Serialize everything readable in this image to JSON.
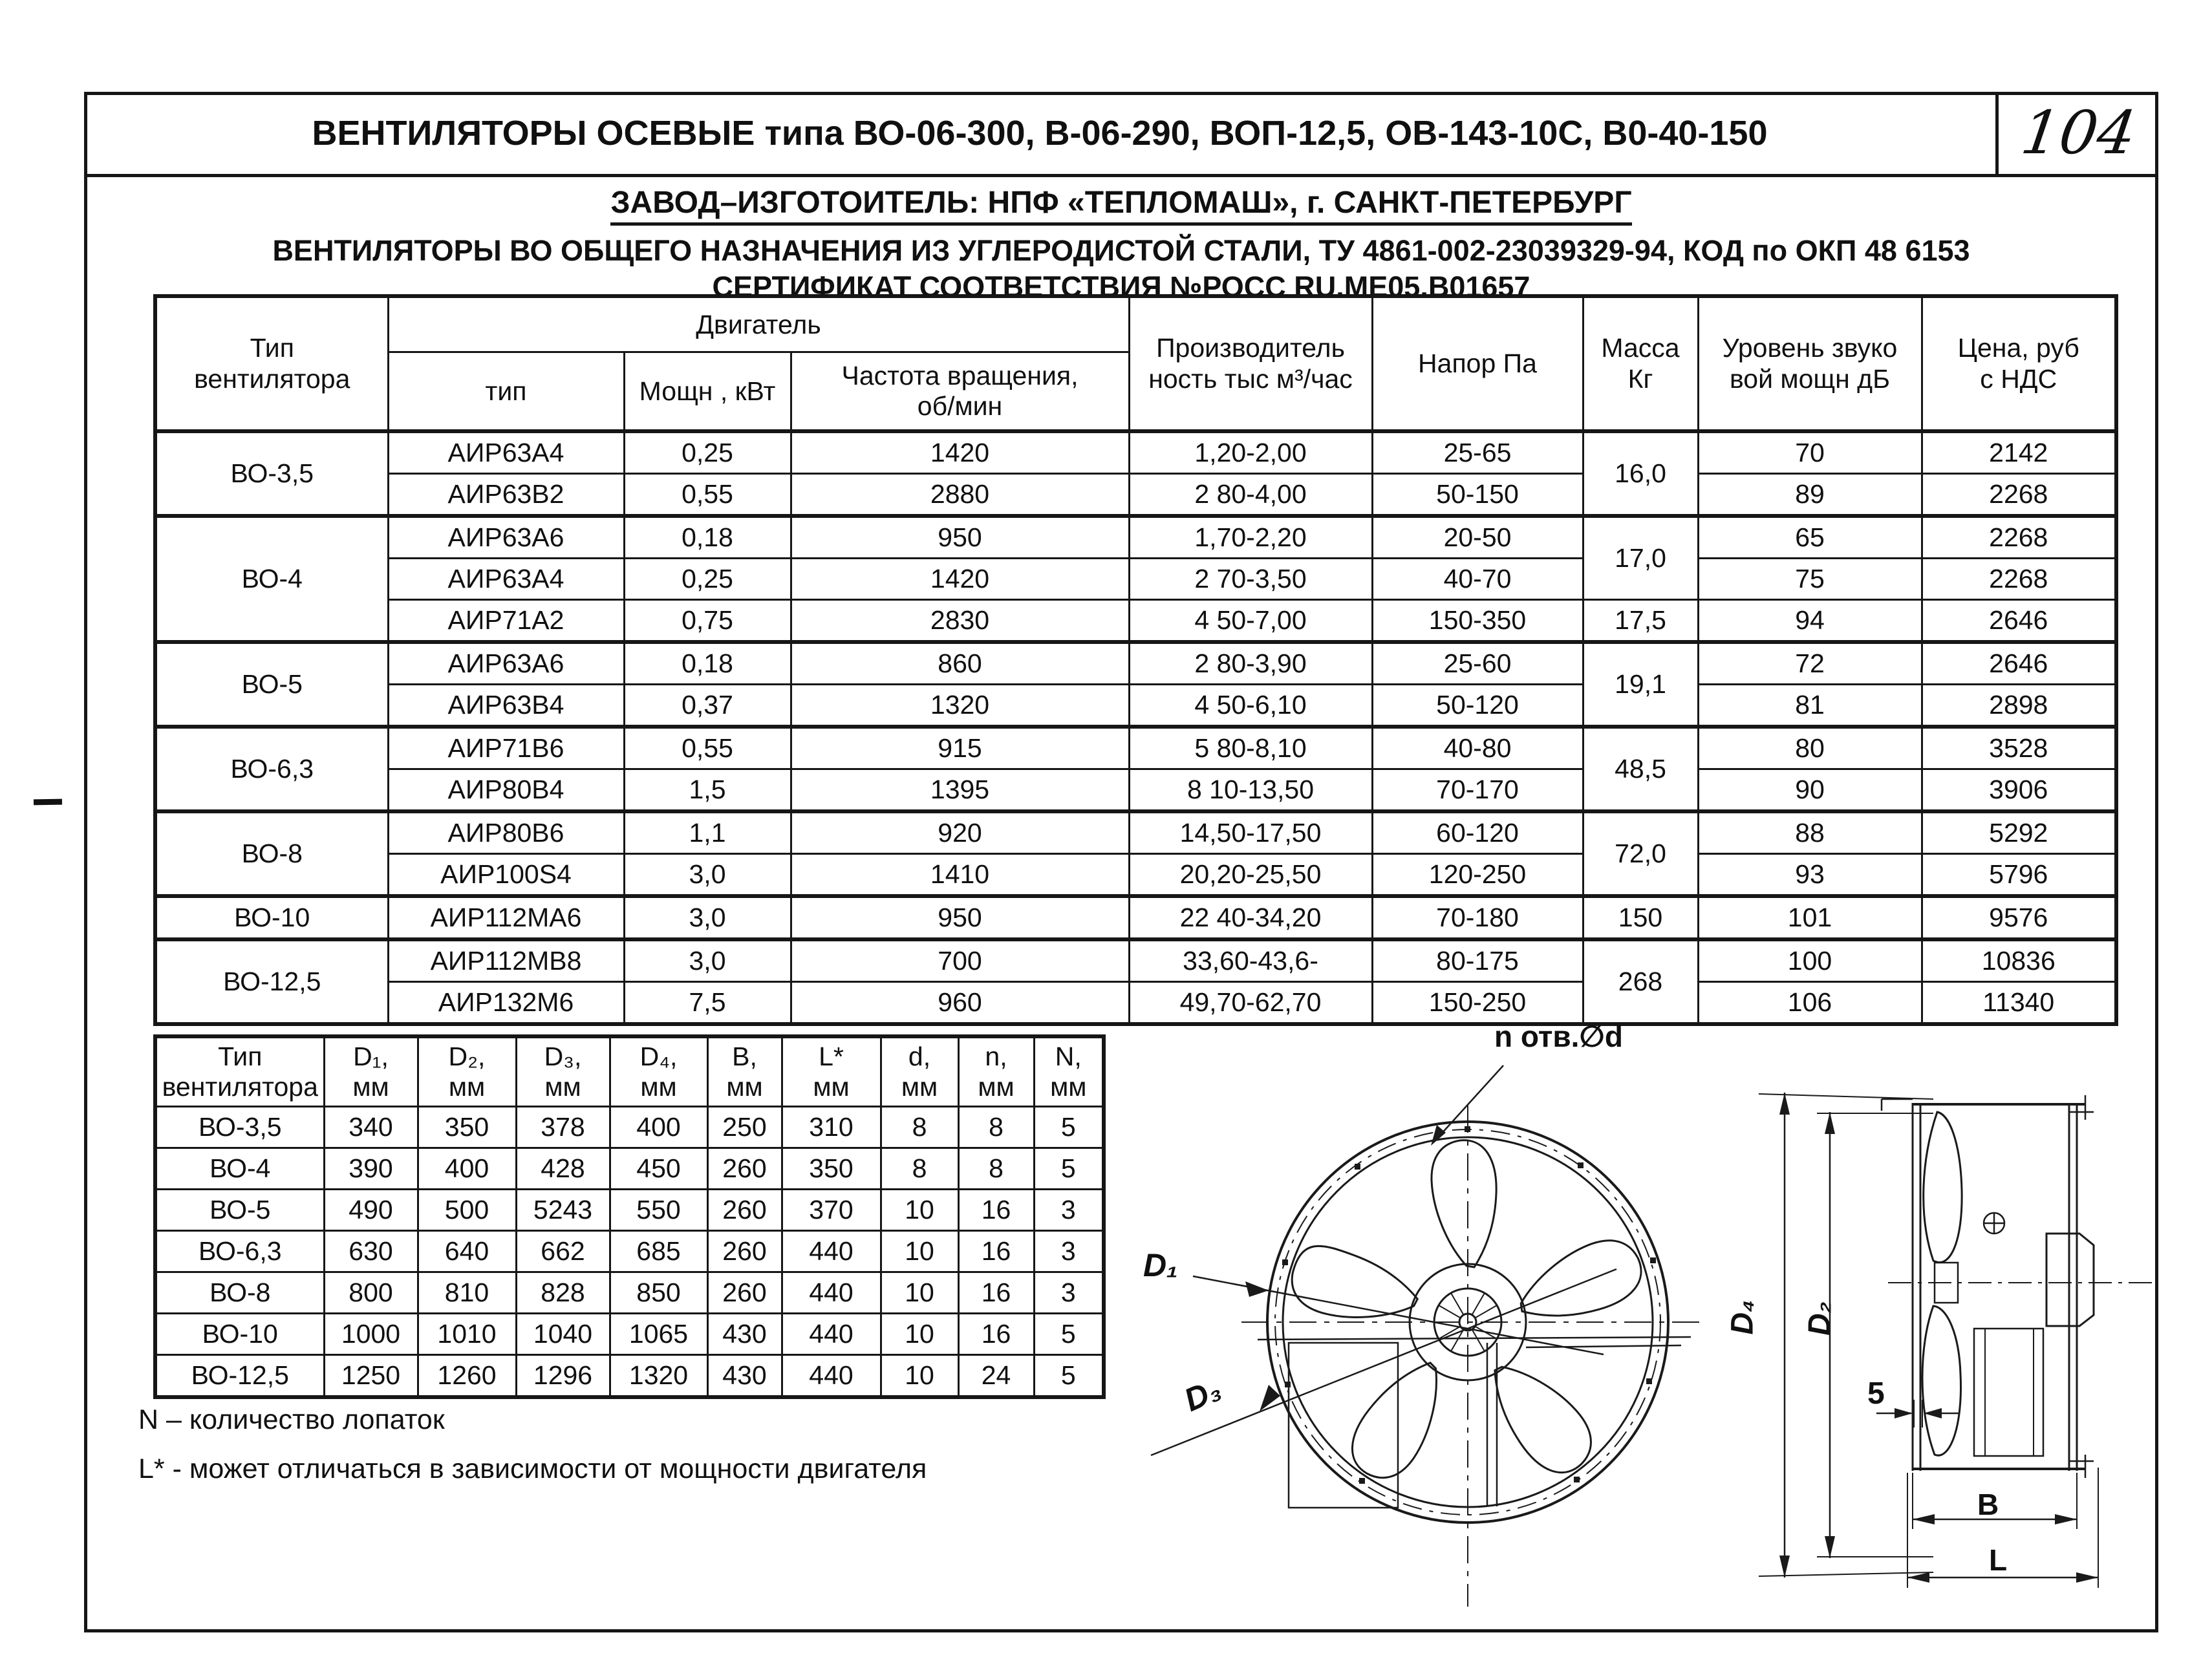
{
  "page": {
    "number": "104",
    "title": "ВЕНТИЛЯТОРЫ ОСЕВЫЕ типа ВО-06-300, В-06-290, ВОП-12,5, ОВ-143-10С, В0-40-150",
    "manufacturer": "ЗАВОД–ИЗГОТОИТЕЛЬ: НПФ «ТЕПЛОМАШ», г. САНКТ-ПЕТЕРБУРГ",
    "description_line1": "ВЕНТИЛЯТОРЫ ВО ОБЩЕГО НАЗНАЧЕНИЯ ИЗ УГЛЕРОДИСТОЙ СТАЛИ, ТУ 4861-002-23039329-94, КОД по ОКП 48 6153",
    "description_line2": "СЕРТИФИКАТ СООТВЕТСТВИЯ №РОСС RU.ME05.B01657"
  },
  "spec_table": {
    "header": {
      "type_l1": "Тип",
      "type_l2": "вентилятора",
      "motor_group": "Двигатель",
      "motor_type": "тип",
      "power": "Мощн , кВт",
      "rpm_l1": "Частота вращения,",
      "rpm_l2": "об/мин",
      "capacity_l1": "Производитель",
      "capacity_l2": "ность тыс м³/час",
      "pressure": "Напор Па",
      "mass_l1": "Масса",
      "mass_l2": "Кг",
      "noise_l1": "Уровень звуко",
      "noise_l2": "вой мощн дБ",
      "price_l1": "Цена, руб",
      "price_l2": "с НДС"
    },
    "groups": [
      {
        "type": "ВО-3,5",
        "masses": [
          {
            "value": "16,0",
            "span": 2
          }
        ],
        "rows": [
          {
            "motor": "АИР63А4",
            "power": "0,25",
            "rpm": "1420",
            "cap": "1,20-2,00",
            "pres": "25-65",
            "noise": "70",
            "price": "2142"
          },
          {
            "motor": "АИР63В2",
            "power": "0,55",
            "rpm": "2880",
            "cap": "2 80-4,00",
            "pres": "50-150",
            "noise": "89",
            "price": "2268"
          }
        ]
      },
      {
        "type": "ВО-4",
        "masses": [
          {
            "value": "17,0",
            "span": 2
          },
          {
            "value": "17,5",
            "span": 1
          }
        ],
        "rows": [
          {
            "motor": "АИР63А6",
            "power": "0,18",
            "rpm": "950",
            "cap": "1,70-2,20",
            "pres": "20-50",
            "noise": "65",
            "price": "2268"
          },
          {
            "motor": "АИР63А4",
            "power": "0,25",
            "rpm": "1420",
            "cap": "2 70-3,50",
            "pres": "40-70",
            "noise": "75",
            "price": "2268"
          },
          {
            "motor": "АИР71А2",
            "power": "0,75",
            "rpm": "2830",
            "cap": "4 50-7,00",
            "pres": "150-350",
            "noise": "94",
            "price": "2646"
          }
        ]
      },
      {
        "type": "ВО-5",
        "masses": [
          {
            "value": "19,1",
            "span": 2
          }
        ],
        "rows": [
          {
            "motor": "АИР63А6",
            "power": "0,18",
            "rpm": "860",
            "cap": "2 80-3,90",
            "pres": "25-60",
            "noise": "72",
            "price": "2646"
          },
          {
            "motor": "АИР63В4",
            "power": "0,37",
            "rpm": "1320",
            "cap": "4 50-6,10",
            "pres": "50-120",
            "noise": "81",
            "price": "2898"
          }
        ]
      },
      {
        "type": "ВО-6,3",
        "masses": [
          {
            "value": "48,5",
            "span": 2
          }
        ],
        "rows": [
          {
            "motor": "АИР71В6",
            "power": "0,55",
            "rpm": "915",
            "cap": "5 80-8,10",
            "pres": "40-80",
            "noise": "80",
            "price": "3528"
          },
          {
            "motor": "АИР80В4",
            "power": "1,5",
            "rpm": "1395",
            "cap": "8 10-13,50",
            "pres": "70-170",
            "noise": "90",
            "price": "3906"
          }
        ]
      },
      {
        "type": "ВО-8",
        "masses": [
          {
            "value": "72,0",
            "span": 2
          }
        ],
        "rows": [
          {
            "motor": "АИР80В6",
            "power": "1,1",
            "rpm": "920",
            "cap": "14,50-17,50",
            "pres": "60-120",
            "noise": "88",
            "price": "5292"
          },
          {
            "motor": "АИР100S4",
            "power": "3,0",
            "rpm": "1410",
            "cap": "20,20-25,50",
            "pres": "120-250",
            "noise": "93",
            "price": "5796"
          }
        ]
      },
      {
        "type": "ВО-10",
        "masses": [
          {
            "value": "150",
            "span": 1
          }
        ],
        "rows": [
          {
            "motor": "АИР112МА6",
            "power": "3,0",
            "rpm": "950",
            "cap": "22 40-34,20",
            "pres": "70-180",
            "noise": "101",
            "price": "9576"
          }
        ]
      },
      {
        "type": "ВО-12,5",
        "masses": [
          {
            "value": "268",
            "span": 2
          }
        ],
        "rows": [
          {
            "motor": "АИР112МВ8",
            "power": "3,0",
            "rpm": "700",
            "cap": "33,60-43,6-",
            "pres": "80-175",
            "noise": "100",
            "price": "10836"
          },
          {
            "motor": "АИР132М6",
            "power": "7,5",
            "rpm": "960",
            "cap": "49,70-62,70",
            "pres": "150-250",
            "noise": "106",
            "price": "11340"
          }
        ]
      }
    ]
  },
  "dim_table": {
    "header": {
      "type_l1": "Тип",
      "type_l2": "вентилятора",
      "cols": [
        {
          "l1": "D₁,",
          "l2": "мм"
        },
        {
          "l1": "D₂,",
          "l2": "мм"
        },
        {
          "l1": "D₃,",
          "l2": "мм"
        },
        {
          "l1": "D₄,",
          "l2": "мм"
        },
        {
          "l1": "B,",
          "l2": "мм"
        },
        {
          "l1": "L*",
          "l2": "мм"
        },
        {
          "l1": "d,",
          "l2": "мм"
        },
        {
          "l1": "n,",
          "l2": "мм"
        },
        {
          "l1": "N,",
          "l2": "мм"
        }
      ]
    },
    "rows": [
      [
        "ВО-3,5",
        "340",
        "350",
        "378",
        "400",
        "250",
        "310",
        "8",
        "8",
        "5"
      ],
      [
        "ВО-4",
        "390",
        "400",
        "428",
        "450",
        "260",
        "350",
        "8",
        "8",
        "5"
      ],
      [
        "ВО-5",
        "490",
        "500",
        "5243",
        "550",
        "260",
        "370",
        "10",
        "16",
        "3"
      ],
      [
        "ВО-6,3",
        "630",
        "640",
        "662",
        "685",
        "260",
        "440",
        "10",
        "16",
        "3"
      ],
      [
        "ВО-8",
        "800",
        "810",
        "828",
        "850",
        "260",
        "440",
        "10",
        "16",
        "3"
      ],
      [
        "ВО-10",
        "1000",
        "1010",
        "1040",
        "1065",
        "430",
        "440",
        "10",
        "16",
        "5"
      ],
      [
        "ВО-12,5",
        "1250",
        "1260",
        "1296",
        "1320",
        "430",
        "440",
        "10",
        "24",
        "5"
      ]
    ]
  },
  "notes": {
    "n": "N – количество лопаток",
    "l": "L* - может отличаться в зависимости от мощности двигателя"
  },
  "drawings": {
    "front": {
      "holes_label": "n отв.∅d",
      "d1": "D₁",
      "d3": "D₃"
    },
    "side": {
      "d4": "D₄",
      "d2": "D₂",
      "thickness": "5",
      "b": "B",
      "l": "L"
    }
  }
}
